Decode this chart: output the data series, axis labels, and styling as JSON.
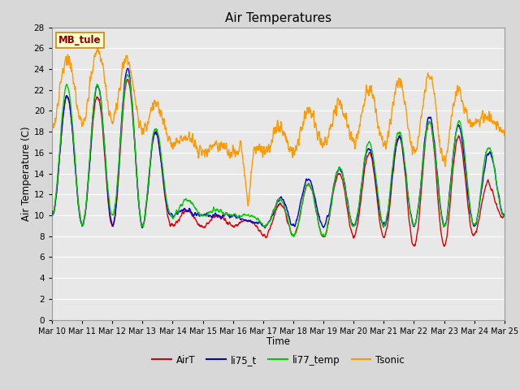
{
  "title": "Air Temperatures",
  "xlabel": "Time",
  "ylabel": "Air Temperature (C)",
  "annotation": "MB_tule",
  "ylim": [
    0,
    28
  ],
  "yticks": [
    0,
    2,
    4,
    6,
    8,
    10,
    12,
    14,
    16,
    18,
    20,
    22,
    24,
    26,
    28
  ],
  "xtick_labels": [
    "Mar 10",
    "Mar 11",
    "Mar 12",
    "Mar 13",
    "Mar 14",
    "Mar 15",
    "Mar 16",
    "Mar 17",
    "Mar 18",
    "Mar 19",
    "Mar 20",
    "Mar 21",
    "Mar 22",
    "Mar 23",
    "Mar 24",
    "Mar 25"
  ],
  "series": {
    "AirT": {
      "color": "#dd0000",
      "lw": 1.0
    },
    "li75_t": {
      "color": "#0000dd",
      "lw": 1.0
    },
    "li77_temp": {
      "color": "#00cc00",
      "lw": 1.0
    },
    "Tsonic": {
      "color": "#ff9900",
      "lw": 1.0
    }
  },
  "bg_color": "#e8e8e8",
  "grid_color": "#ffffff",
  "fig_bg": "#d8d8d8",
  "annotation_color": "#880000",
  "annotation_bg": "#ffffcc",
  "annotation_edge": "#cc8800"
}
